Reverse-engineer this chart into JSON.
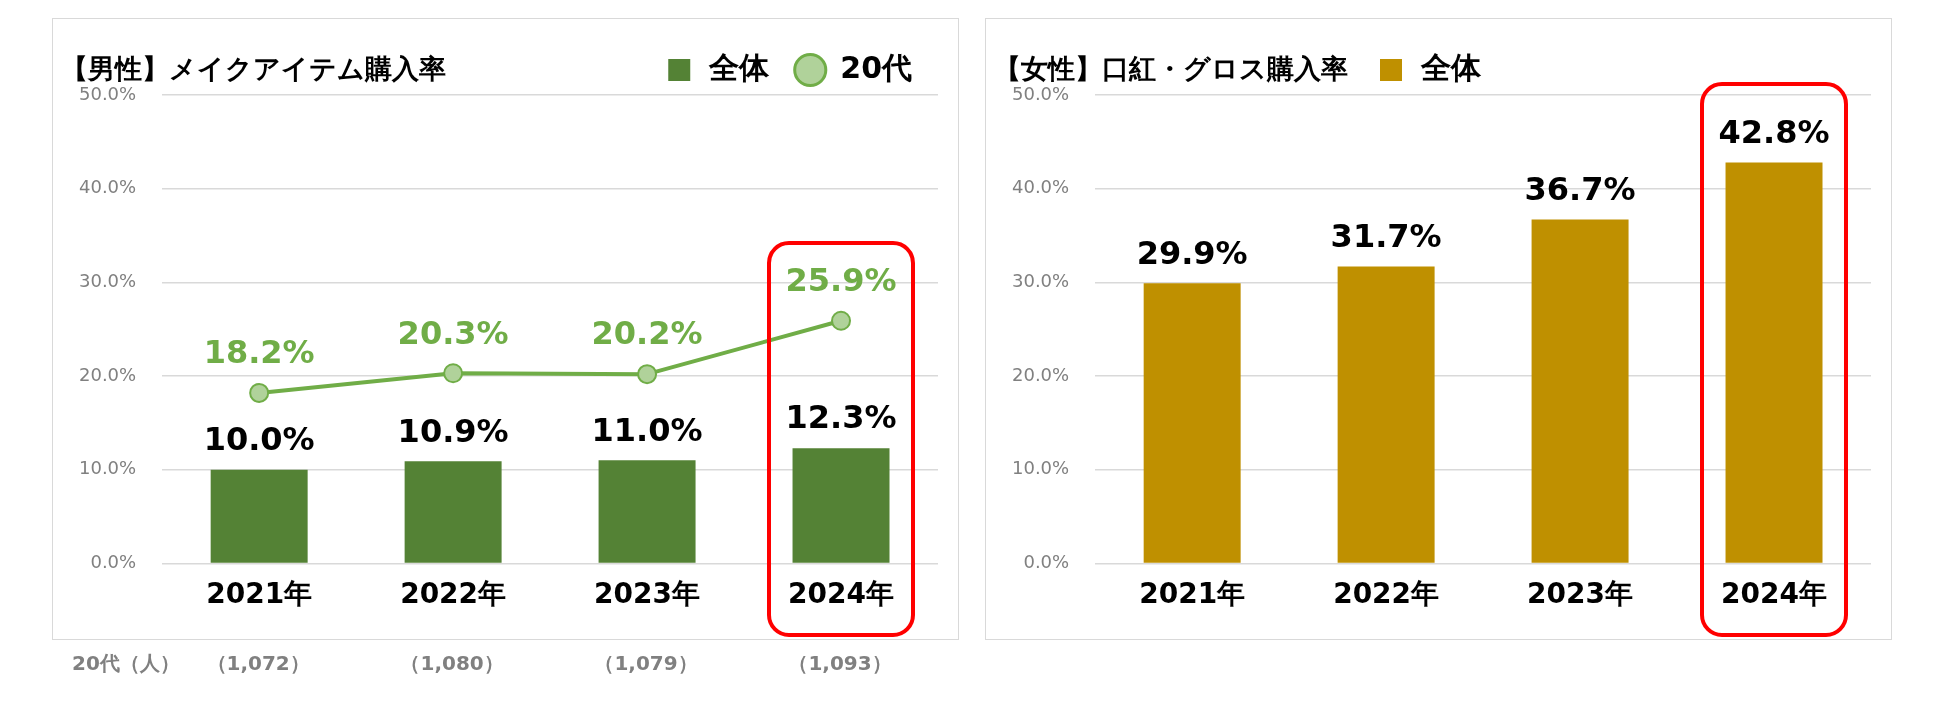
{
  "chart_data": [
    {
      "type": "bar",
      "title": "【男性】メイクアイテム購入率",
      "categories": [
        "2021年",
        "2022年",
        "2023年",
        "2024年"
      ],
      "series": [
        {
          "name": "全体",
          "color": "#548235",
          "values": [
            10.0,
            10.9,
            11.0,
            12.3
          ],
          "value_labels": [
            "10.0%",
            "10.9%",
            "11.0%",
            "12.3%"
          ]
        },
        {
          "name": "20代",
          "type": "line",
          "color": "#70ad47",
          "values": [
            18.2,
            20.3,
            20.2,
            25.9
          ],
          "value_labels": [
            "18.2%",
            "20.3%",
            "20.2%",
            "25.9%"
          ],
          "marker": "circle"
        }
      ],
      "ylim": [
        0,
        50
      ],
      "yticks": [
        {
          "value": 0,
          "label": "0.0%"
        },
        {
          "value": 10,
          "label": "10.0%"
        },
        {
          "value": 20,
          "label": "20.0%"
        },
        {
          "value": 30,
          "label": "30.0%"
        },
        {
          "value": 40,
          "label": "40.0%"
        },
        {
          "value": 50,
          "label": "50.0%"
        }
      ],
      "grid": "y",
      "legend": "top right",
      "annotations": [
        "20代（人）",
        "（1,072）",
        "（1,080）",
        "（1,079）",
        "（1,093）"
      ]
    },
    {
      "type": "bar",
      "title": "【女性】口紅・グロス購入率",
      "categories": [
        "2021年",
        "2022年",
        "2023年",
        "2024年"
      ],
      "series": [
        {
          "name": "全体",
          "color": "#bf9000",
          "values": [
            29.9,
            31.7,
            36.7,
            42.8
          ],
          "value_labels": [
            "29.9%",
            "31.7%",
            "36.7%",
            "42.8%"
          ]
        }
      ],
      "ylim": [
        0,
        50
      ],
      "yticks": [
        {
          "value": 0,
          "label": "0.0%"
        },
        {
          "value": 10,
          "label": "10.0%"
        },
        {
          "value": 20,
          "label": "20.0%"
        },
        {
          "value": 30,
          "label": "30.0%"
        },
        {
          "value": 40,
          "label": "40.0%"
        },
        {
          "value": 50,
          "label": "50.0%"
        }
      ],
      "grid": "y",
      "legend": "top"
    }
  ]
}
